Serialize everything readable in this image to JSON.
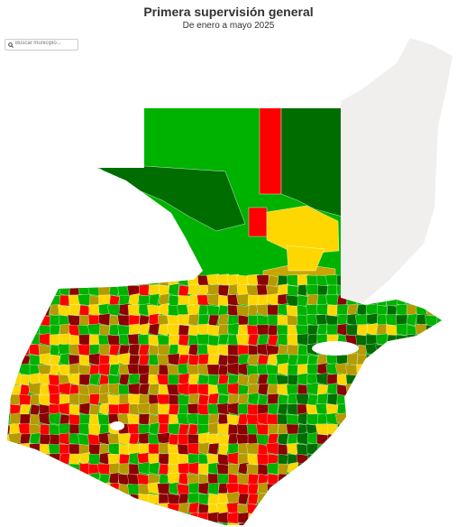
{
  "header": {
    "title": "Primera supervisión general",
    "subtitle": "De enero a mayo 2025"
  },
  "search": {
    "placeholder": "Buscar municipio..."
  }
}
